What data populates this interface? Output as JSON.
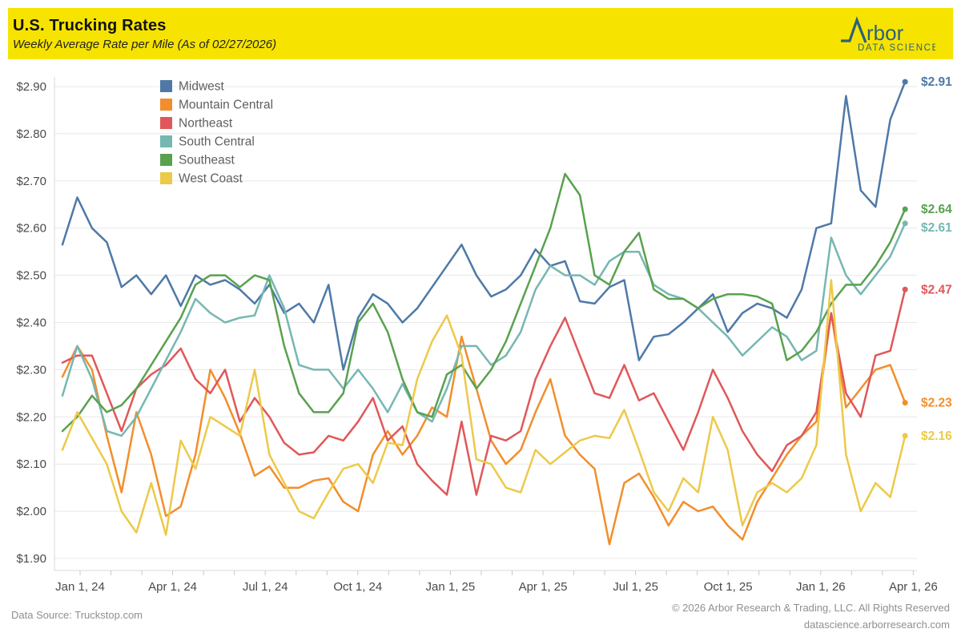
{
  "header": {
    "title": "U.S. Trucking Rates",
    "subtitle": "Weekly Average Rate per Mile (As of 02/27/2026)",
    "banner_color": "#F6E400",
    "logo": {
      "brand": "Arbor",
      "brand_display": "rbor",
      "tagline": "DATA SCIENCE",
      "color": "#2D6079"
    }
  },
  "footer": {
    "source": "Data Source: Truckstop.com",
    "copyright": "© 2026 Arbor Research & Trading, LLC. All Rights Reserved",
    "website": "datascience.arborresearch.com"
  },
  "chart_data": {
    "type": "line",
    "title": "U.S. Trucking Rates",
    "ylabel": "",
    "xlabel": "",
    "grid": "horizontal",
    "legend_position": "top-left",
    "ylim": [
      1.9,
      2.9
    ],
    "ytick_labels": [
      "$1.90",
      "$2.00",
      "$2.10",
      "$2.20",
      "$2.30",
      "$2.40",
      "$2.50",
      "$2.60",
      "$2.70",
      "$2.80",
      "$2.90"
    ],
    "yticks": [
      1.9,
      2.0,
      2.1,
      2.2,
      2.3,
      2.4,
      2.5,
      2.6,
      2.7,
      2.8,
      2.9
    ],
    "xtick_labels": [
      "Jan 1, 24",
      "Apr 1, 24",
      "Jul 1, 24",
      "Oct 1, 24",
      "Jan 1, 25",
      "Apr 1, 25",
      "Jul 1, 25",
      "Oct 1, 25",
      "Jan 1, 26",
      "Apr 1, 26"
    ],
    "x_unit": "weekly samples (every 2 weeks), Dec 2023 through Feb 27, 2026",
    "series": [
      {
        "name": "Midwest",
        "color": "#4E79A7",
        "end_label": "$2.91",
        "values": [
          2.565,
          2.665,
          2.6,
          2.57,
          2.475,
          2.5,
          2.46,
          2.5,
          2.435,
          2.5,
          2.48,
          2.49,
          2.47,
          2.44,
          2.48,
          2.42,
          2.44,
          2.4,
          2.48,
          2.3,
          2.41,
          2.46,
          2.44,
          2.4,
          2.43,
          2.475,
          2.52,
          2.565,
          2.5,
          2.455,
          2.47,
          2.5,
          2.555,
          2.52,
          2.53,
          2.445,
          2.44,
          2.475,
          2.49,
          2.32,
          2.37,
          2.375,
          2.4,
          2.43,
          2.46,
          2.38,
          2.42,
          2.44,
          2.43,
          2.41,
          2.47,
          2.6,
          2.61,
          2.88,
          2.68,
          2.645,
          2.83,
          2.91
        ]
      },
      {
        "name": "Mountain Central",
        "color": "#F28E2B",
        "end_label": "$2.23",
        "values": [
          2.285,
          2.35,
          2.3,
          2.16,
          2.04,
          2.21,
          2.12,
          1.99,
          2.01,
          2.12,
          2.3,
          2.24,
          2.165,
          2.075,
          2.095,
          2.05,
          2.05,
          2.065,
          2.07,
          2.02,
          2.0,
          2.12,
          2.17,
          2.12,
          2.16,
          2.22,
          2.2,
          2.37,
          2.26,
          2.15,
          2.1,
          2.13,
          2.21,
          2.28,
          2.16,
          2.12,
          2.09,
          1.93,
          2.06,
          2.08,
          2.03,
          1.97,
          2.02,
          2.0,
          2.01,
          1.97,
          1.94,
          2.02,
          2.07,
          2.12,
          2.16,
          2.19,
          2.42,
          2.22,
          2.26,
          2.3,
          2.31,
          2.23
        ]
      },
      {
        "name": "Northeast",
        "color": "#E15759",
        "end_label": "$2.47",
        "values": [
          2.315,
          2.33,
          2.33,
          2.25,
          2.17,
          2.26,
          2.29,
          2.31,
          2.345,
          2.28,
          2.25,
          2.3,
          2.19,
          2.24,
          2.2,
          2.145,
          2.12,
          2.125,
          2.16,
          2.15,
          2.19,
          2.24,
          2.15,
          2.18,
          2.1,
          2.065,
          2.035,
          2.19,
          2.035,
          2.16,
          2.15,
          2.17,
          2.28,
          2.35,
          2.41,
          2.33,
          2.25,
          2.24,
          2.31,
          2.235,
          2.25,
          2.19,
          2.13,
          2.21,
          2.3,
          2.24,
          2.17,
          2.12,
          2.085,
          2.14,
          2.16,
          2.21,
          2.42,
          2.25,
          2.2,
          2.33,
          2.34,
          2.47
        ]
      },
      {
        "name": "South Central",
        "color": "#76B7B2",
        "end_label": "$2.61",
        "values": [
          2.245,
          2.35,
          2.28,
          2.17,
          2.16,
          2.2,
          2.26,
          2.32,
          2.38,
          2.45,
          2.42,
          2.4,
          2.41,
          2.415,
          2.5,
          2.43,
          2.31,
          2.3,
          2.3,
          2.26,
          2.3,
          2.26,
          2.21,
          2.27,
          2.21,
          2.19,
          2.26,
          2.35,
          2.35,
          2.31,
          2.33,
          2.38,
          2.47,
          2.52,
          2.5,
          2.5,
          2.48,
          2.53,
          2.55,
          2.55,
          2.48,
          2.46,
          2.45,
          2.43,
          2.4,
          2.37,
          2.33,
          2.36,
          2.39,
          2.37,
          2.32,
          2.34,
          2.58,
          2.5,
          2.46,
          2.5,
          2.54,
          2.61
        ]
      },
      {
        "name": "Southeast",
        "color": "#59A14F",
        "end_label": "$2.64",
        "values": [
          2.17,
          2.2,
          2.245,
          2.21,
          2.225,
          2.26,
          2.31,
          2.36,
          2.41,
          2.48,
          2.5,
          2.5,
          2.475,
          2.5,
          2.49,
          2.35,
          2.25,
          2.21,
          2.21,
          2.25,
          2.4,
          2.44,
          2.38,
          2.28,
          2.21,
          2.2,
          2.29,
          2.31,
          2.26,
          2.3,
          2.36,
          2.44,
          2.52,
          2.6,
          2.715,
          2.67,
          2.5,
          2.48,
          2.55,
          2.59,
          2.47,
          2.45,
          2.45,
          2.43,
          2.45,
          2.46,
          2.46,
          2.455,
          2.44,
          2.32,
          2.34,
          2.38,
          2.44,
          2.48,
          2.48,
          2.52,
          2.57,
          2.64
        ]
      },
      {
        "name": "West Coast",
        "color": "#EDC949",
        "end_label": "$2.16",
        "values": [
          2.13,
          2.21,
          2.155,
          2.1,
          2.0,
          1.955,
          2.06,
          1.95,
          2.15,
          2.09,
          2.2,
          2.18,
          2.16,
          2.3,
          2.12,
          2.06,
          2.0,
          1.985,
          2.04,
          2.09,
          2.1,
          2.06,
          2.145,
          2.14,
          2.28,
          2.36,
          2.415,
          2.33,
          2.11,
          2.1,
          2.05,
          2.04,
          2.13,
          2.1,
          2.125,
          2.15,
          2.16,
          2.155,
          2.215,
          2.13,
          2.04,
          2.0,
          2.07,
          2.04,
          2.2,
          2.13,
          1.97,
          2.04,
          2.06,
          2.04,
          2.07,
          2.14,
          2.49,
          2.12,
          2.0,
          2.06,
          2.03,
          2.16
        ]
      }
    ]
  }
}
